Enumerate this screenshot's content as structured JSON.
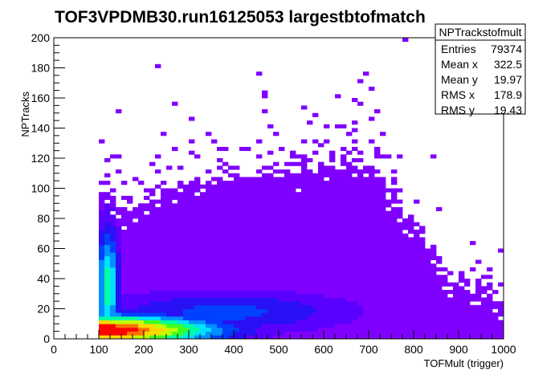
{
  "chart_data": {
    "type": "heatmap",
    "title": "TOF3VPDMB30.run16125053 largestbtofmatch",
    "xlabel": "TOFMult (trigger)",
    "ylabel": "NPTracks",
    "xlim": [
      0,
      1000
    ],
    "ylim": [
      0,
      200
    ],
    "bin_width_x": 12.5,
    "bin_width_y": 2.5,
    "x_ticks": [
      "0",
      "100",
      "200",
      "300",
      "400",
      "500",
      "600",
      "700",
      "800",
      "900",
      "1000"
    ],
    "y_ticks": [
      "0",
      "20",
      "40",
      "60",
      "80",
      "100",
      "120",
      "140",
      "160",
      "180",
      "200"
    ],
    "grid": false,
    "palette": [
      "#8000ff",
      "#5a00ff",
      "#2a10f5",
      "#0040ff",
      "#0090ff",
      "#00e0ff",
      "#00ffa0",
      "#40ff20",
      "#c0ff00",
      "#ffd800",
      "#ff7000",
      "#ff0000"
    ],
    "stats": {
      "title": "NPTrackstofmult",
      "rows": [
        {
          "label": "Entries",
          "value": "79374"
        },
        {
          "label": "Mean x",
          "value": "322.5"
        },
        {
          "label": "Mean y",
          "value": "19.97"
        },
        {
          "label": "RMS x",
          "value": "178.9"
        },
        {
          "label": "RMS y",
          "value": "19.43"
        }
      ]
    },
    "density": {
      "x_start": 100,
      "x_end": 1000,
      "peak_x": 110,
      "peak_y": 6,
      "upper_edge_points": [
        [
          100,
          100
        ],
        [
          150,
          85
        ],
        [
          200,
          90
        ],
        [
          250,
          100
        ],
        [
          300,
          102
        ],
        [
          400,
          105
        ],
        [
          500,
          108
        ],
        [
          600,
          114
        ],
        [
          650,
          118
        ],
        [
          700,
          112
        ],
        [
          750,
          95
        ],
        [
          800,
          72
        ],
        [
          850,
          48
        ],
        [
          900,
          35
        ],
        [
          950,
          28
        ],
        [
          1000,
          25
        ]
      ],
      "outliers": [
        [
          125,
          122
        ],
        [
          140,
          110
        ],
        [
          190,
          103
        ],
        [
          230,
          120
        ],
        [
          240,
          85
        ],
        [
          265,
          155
        ],
        [
          265,
          125
        ],
        [
          300,
          145
        ],
        [
          310,
          130
        ],
        [
          315,
          120
        ],
        [
          345,
          135
        ],
        [
          385,
          115
        ],
        [
          415,
          125
        ],
        [
          465,
          160
        ],
        [
          470,
          150
        ],
        [
          485,
          140
        ],
        [
          505,
          125
        ],
        [
          540,
          120
        ],
        [
          560,
          130
        ],
        [
          595,
          115
        ],
        [
          610,
          140
        ],
        [
          625,
          140
        ],
        [
          635,
          160
        ],
        [
          675,
          170
        ],
        [
          680,
          155
        ],
        [
          690,
          175
        ],
        [
          700,
          165
        ],
        [
          705,
          145
        ],
        [
          720,
          150
        ],
        [
          735,
          135
        ],
        [
          740,
          120
        ],
        [
          755,
          110
        ],
        [
          760,
          105
        ],
        [
          800,
          60
        ],
        [
          815,
          70
        ],
        [
          830,
          55
        ],
        [
          860,
          45
        ],
        [
          870,
          38
        ],
        [
          900,
          40
        ],
        [
          915,
          28
        ],
        [
          945,
          32
        ],
        [
          990,
          35
        ],
        [
          235,
          182
        ],
        [
          455,
          175
        ],
        [
          550,
          153
        ],
        [
          600,
          130
        ],
        [
          785,
          198
        ],
        [
          845,
          122
        ],
        [
          720,
          125
        ]
      ]
    }
  }
}
